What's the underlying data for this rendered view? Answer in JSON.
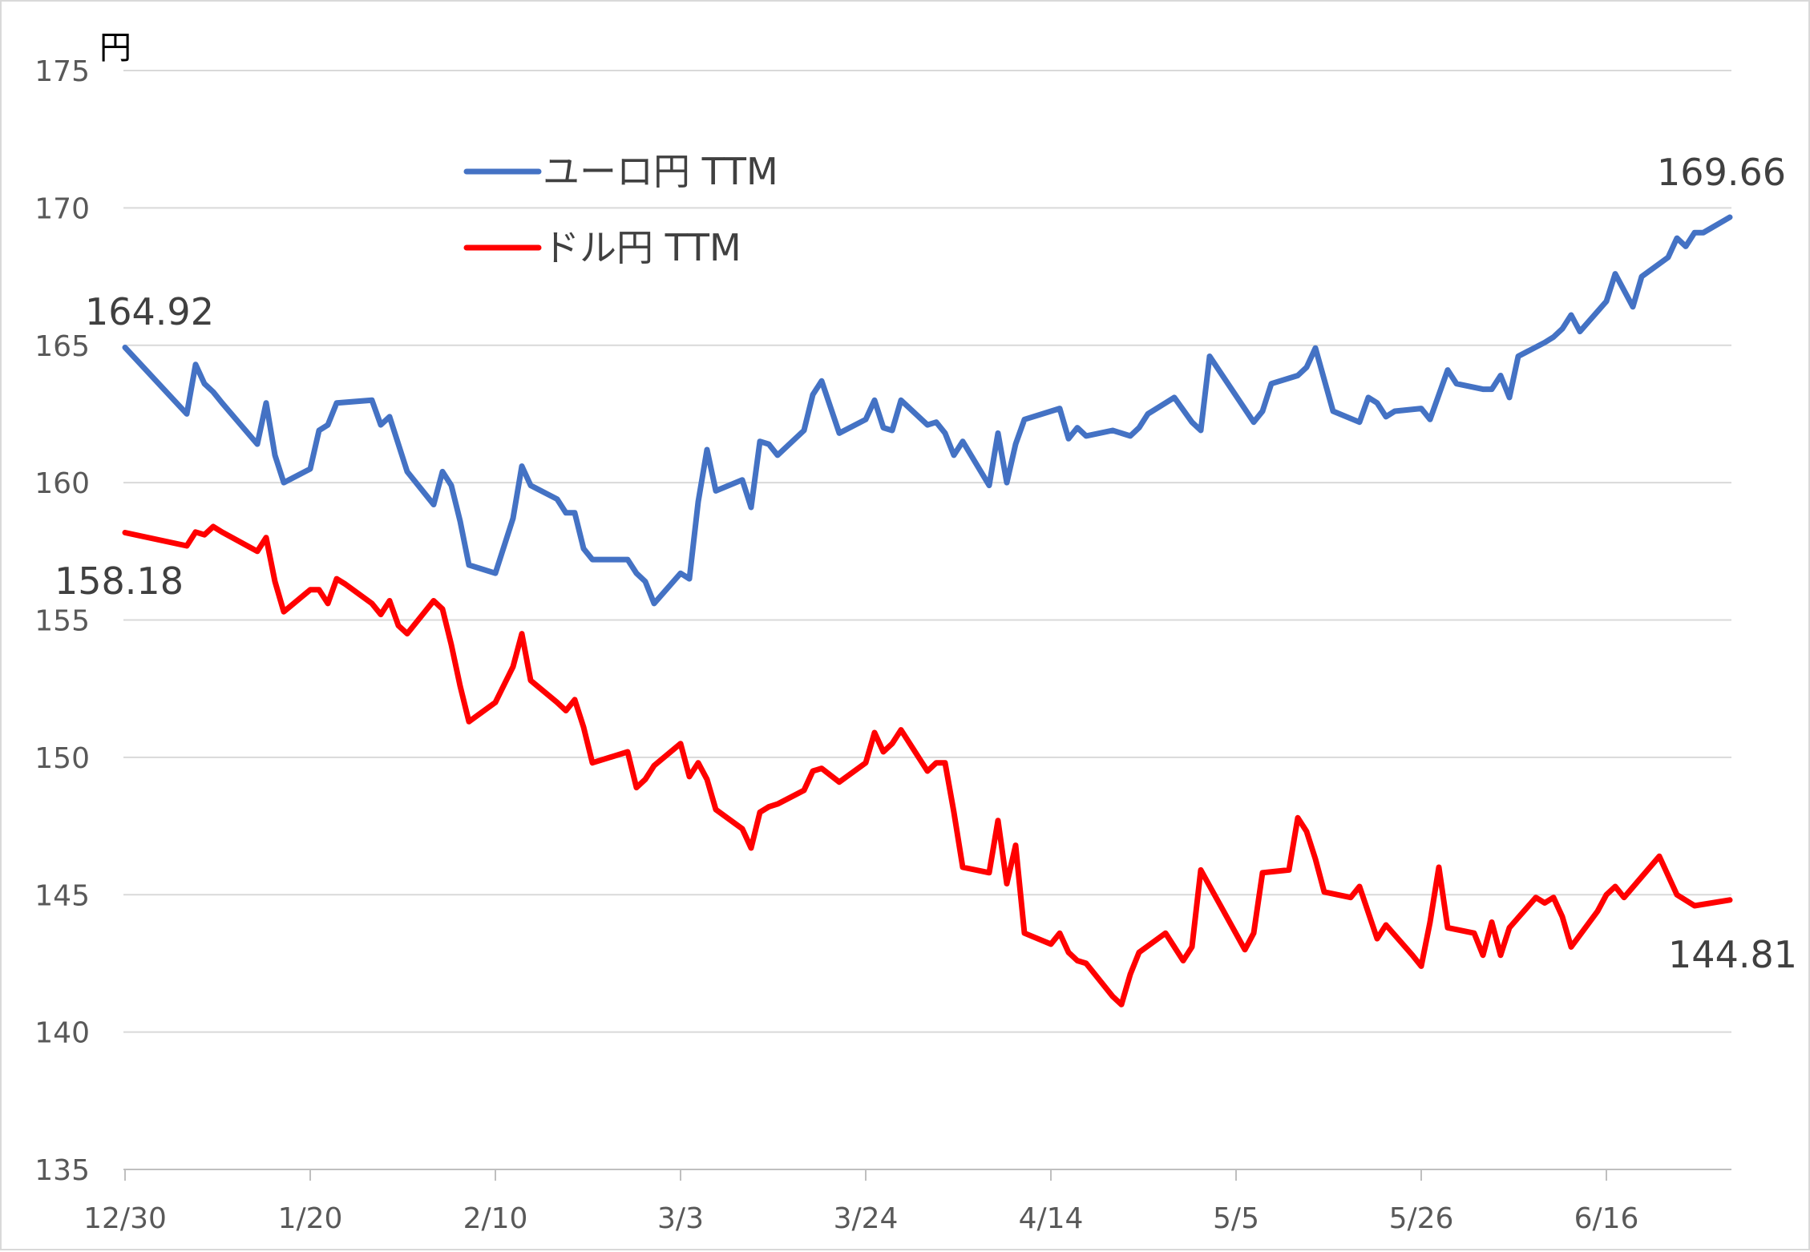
{
  "chart_data": {
    "type": "line",
    "unit": "円",
    "ylim": [
      135,
      175
    ],
    "y_ticks": [
      135,
      140,
      145,
      150,
      155,
      160,
      165,
      170,
      175
    ],
    "x_tick_labels": [
      "12/30",
      "1/20",
      "2/10",
      "3/3",
      "3/24",
      "4/14",
      "5/5",
      "5/26",
      "6/16"
    ],
    "x_range_days": [
      0,
      182
    ],
    "grid": true,
    "legend_position": "top-left",
    "colors": {
      "eur": "#4472C4",
      "usd": "#FF0000",
      "grid": "#d9d9d9",
      "axis": "#bfbfbf"
    },
    "series": [
      {
        "name": "ユーロ円 TTM",
        "key": "eur",
        "start_label": "164.92",
        "end_label": "169.66",
        "points": [
          [
            0,
            164.92
          ],
          [
            7,
            162.5
          ],
          [
            8,
            164.3
          ],
          [
            9,
            163.6
          ],
          [
            10,
            163.3
          ],
          [
            11,
            162.9
          ],
          [
            15,
            161.4
          ],
          [
            16,
            162.9
          ],
          [
            17,
            161.0
          ],
          [
            18,
            160.0
          ],
          [
            21,
            160.5
          ],
          [
            22,
            161.9
          ],
          [
            23,
            162.1
          ],
          [
            24,
            162.9
          ],
          [
            28,
            163.0
          ],
          [
            29,
            162.1
          ],
          [
            30,
            162.4
          ],
          [
            32,
            160.4
          ],
          [
            35,
            159.2
          ],
          [
            36,
            160.4
          ],
          [
            37,
            159.9
          ],
          [
            38,
            158.6
          ],
          [
            39,
            157.0
          ],
          [
            42,
            156.7
          ],
          [
            44,
            158.7
          ],
          [
            45,
            160.6
          ],
          [
            46,
            159.9
          ],
          [
            49,
            159.4
          ],
          [
            50,
            158.9
          ],
          [
            51,
            158.9
          ],
          [
            52,
            157.6
          ],
          [
            53,
            157.2
          ],
          [
            57,
            157.2
          ],
          [
            58,
            156.7
          ],
          [
            59,
            156.4
          ],
          [
            60,
            155.6
          ],
          [
            63,
            156.7
          ],
          [
            64,
            156.5
          ],
          [
            65,
            159.3
          ],
          [
            66,
            161.2
          ],
          [
            67,
            159.7
          ],
          [
            70,
            160.1
          ],
          [
            71,
            159.1
          ],
          [
            72,
            161.5
          ],
          [
            73,
            161.4
          ],
          [
            74,
            161.0
          ],
          [
            77,
            161.9
          ],
          [
            78,
            163.2
          ],
          [
            79,
            163.7
          ],
          [
            81,
            161.8
          ],
          [
            84,
            162.3
          ],
          [
            85,
            163.0
          ],
          [
            86,
            162.0
          ],
          [
            87,
            161.9
          ],
          [
            88,
            163.0
          ],
          [
            91,
            162.1
          ],
          [
            92,
            162.2
          ],
          [
            93,
            161.8
          ],
          [
            94,
            161.0
          ],
          [
            95,
            161.5
          ],
          [
            98,
            159.9
          ],
          [
            99,
            161.8
          ],
          [
            100,
            160.0
          ],
          [
            101,
            161.4
          ],
          [
            102,
            162.3
          ],
          [
            106,
            162.7
          ],
          [
            107,
            161.6
          ],
          [
            108,
            162.0
          ],
          [
            109,
            161.7
          ],
          [
            112,
            161.9
          ],
          [
            114,
            161.7
          ],
          [
            115,
            162.0
          ],
          [
            116,
            162.5
          ],
          [
            119,
            163.1
          ],
          [
            121,
            162.2
          ],
          [
            122,
            161.9
          ],
          [
            123,
            164.6
          ],
          [
            128,
            162.2
          ],
          [
            129,
            162.6
          ],
          [
            130,
            163.6
          ],
          [
            133,
            163.9
          ],
          [
            134,
            164.2
          ],
          [
            135,
            164.9
          ],
          [
            137,
            162.6
          ],
          [
            140,
            162.2
          ],
          [
            141,
            163.1
          ],
          [
            142,
            162.9
          ],
          [
            143,
            162.4
          ],
          [
            144,
            162.6
          ],
          [
            147,
            162.7
          ],
          [
            148,
            162.3
          ],
          [
            150,
            164.1
          ],
          [
            151,
            163.6
          ],
          [
            154,
            163.4
          ],
          [
            155,
            163.4
          ],
          [
            156,
            163.9
          ],
          [
            157,
            163.1
          ],
          [
            158,
            164.6
          ],
          [
            161,
            165.1
          ],
          [
            162,
            165.3
          ],
          [
            163,
            165.6
          ],
          [
            164,
            166.1
          ],
          [
            165,
            165.5
          ],
          [
            168,
            166.6
          ],
          [
            169,
            167.6
          ],
          [
            171,
            166.4
          ],
          [
            172,
            167.5
          ],
          [
            175,
            168.2
          ],
          [
            176,
            168.9
          ],
          [
            177,
            168.6
          ],
          [
            178,
            169.1
          ],
          [
            179,
            169.1
          ],
          [
            182,
            169.66
          ]
        ]
      },
      {
        "name": "ドル円 TTM",
        "key": "usd",
        "start_label": "158.18",
        "end_label": "144.81",
        "points": [
          [
            0,
            158.18
          ],
          [
            7,
            157.7
          ],
          [
            8,
            158.2
          ],
          [
            9,
            158.1
          ],
          [
            10,
            158.4
          ],
          [
            11,
            158.2
          ],
          [
            15,
            157.5
          ],
          [
            16,
            158.0
          ],
          [
            17,
            156.4
          ],
          [
            18,
            155.3
          ],
          [
            21,
            156.1
          ],
          [
            22,
            156.1
          ],
          [
            23,
            155.6
          ],
          [
            24,
            156.5
          ],
          [
            25,
            156.3
          ],
          [
            28,
            155.6
          ],
          [
            29,
            155.2
          ],
          [
            30,
            155.7
          ],
          [
            31,
            154.8
          ],
          [
            32,
            154.5
          ],
          [
            35,
            155.7
          ],
          [
            36,
            155.4
          ],
          [
            37,
            154.1
          ],
          [
            38,
            152.6
          ],
          [
            39,
            151.3
          ],
          [
            42,
            152.0
          ],
          [
            44,
            153.3
          ],
          [
            45,
            154.5
          ],
          [
            46,
            152.8
          ],
          [
            49,
            152.0
          ],
          [
            50,
            151.7
          ],
          [
            51,
            152.1
          ],
          [
            52,
            151.1
          ],
          [
            53,
            149.8
          ],
          [
            57,
            150.2
          ],
          [
            58,
            148.9
          ],
          [
            59,
            149.2
          ],
          [
            60,
            149.7
          ],
          [
            63,
            150.5
          ],
          [
            64,
            149.3
          ],
          [
            65,
            149.8
          ],
          [
            66,
            149.2
          ],
          [
            67,
            148.1
          ],
          [
            70,
            147.4
          ],
          [
            71,
            146.7
          ],
          [
            72,
            148.0
          ],
          [
            73,
            148.2
          ],
          [
            74,
            148.3
          ],
          [
            77,
            148.8
          ],
          [
            78,
            149.5
          ],
          [
            79,
            149.6
          ],
          [
            81,
            149.1
          ],
          [
            84,
            149.8
          ],
          [
            85,
            150.9
          ],
          [
            86,
            150.2
          ],
          [
            87,
            150.5
          ],
          [
            88,
            151.0
          ],
          [
            91,
            149.5
          ],
          [
            92,
            149.8
          ],
          [
            93,
            149.8
          ],
          [
            94,
            148.0
          ],
          [
            95,
            146.0
          ],
          [
            98,
            145.8
          ],
          [
            99,
            147.7
          ],
          [
            100,
            145.4
          ],
          [
            101,
            146.8
          ],
          [
            102,
            143.6
          ],
          [
            105,
            143.2
          ],
          [
            106,
            143.6
          ],
          [
            107,
            142.9
          ],
          [
            108,
            142.6
          ],
          [
            109,
            142.5
          ],
          [
            112,
            141.3
          ],
          [
            113,
            141.0
          ],
          [
            114,
            142.1
          ],
          [
            115,
            142.9
          ],
          [
            118,
            143.6
          ],
          [
            120,
            142.6
          ],
          [
            121,
            143.1
          ],
          [
            122,
            145.9
          ],
          [
            127,
            143.0
          ],
          [
            128,
            143.6
          ],
          [
            129,
            145.8
          ],
          [
            132,
            145.9
          ],
          [
            133,
            147.8
          ],
          [
            134,
            147.3
          ],
          [
            135,
            146.3
          ],
          [
            136,
            145.1
          ],
          [
            139,
            144.9
          ],
          [
            140,
            145.3
          ],
          [
            142,
            143.4
          ],
          [
            143,
            143.9
          ],
          [
            146,
            142.8
          ],
          [
            147,
            142.4
          ],
          [
            148,
            144.0
          ],
          [
            149,
            146.0
          ],
          [
            150,
            143.8
          ],
          [
            153,
            143.6
          ],
          [
            154,
            142.8
          ],
          [
            155,
            144.0
          ],
          [
            156,
            142.8
          ],
          [
            157,
            143.8
          ],
          [
            160,
            144.9
          ],
          [
            161,
            144.7
          ],
          [
            162,
            144.9
          ],
          [
            163,
            144.2
          ],
          [
            164,
            143.1
          ],
          [
            167,
            144.4
          ],
          [
            168,
            145.0
          ],
          [
            169,
            145.3
          ],
          [
            170,
            144.9
          ],
          [
            174,
            146.4
          ],
          [
            176,
            145.0
          ],
          [
            178,
            144.6
          ],
          [
            182,
            144.81
          ]
        ]
      }
    ]
  }
}
